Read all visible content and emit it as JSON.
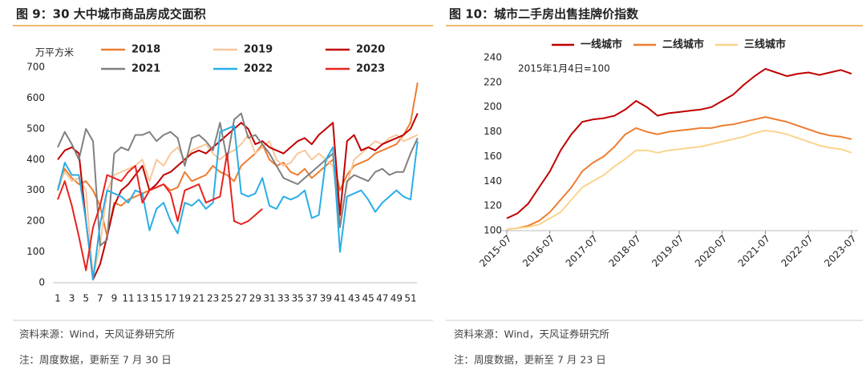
{
  "chart_data": [
    {
      "type": "line",
      "title": "图 9：30 大中城市商品房成交面积",
      "y_label": "万平方米",
      "source": "资料来源：Wind，天风证券研究所",
      "note": "注：周度数据，更新至 7 月 30 日",
      "categories": [
        "1",
        null,
        "3",
        null,
        "5",
        null,
        "7",
        null,
        "9",
        null,
        "11",
        null,
        "13",
        null,
        "15",
        null,
        "17",
        null,
        "19",
        null,
        "21",
        null,
        "23",
        null,
        "25",
        null,
        "27",
        null,
        "29",
        null,
        "31",
        null,
        "33",
        null,
        "35",
        null,
        "37",
        null,
        "39",
        null,
        "41",
        null,
        "43",
        null,
        "45",
        null,
        "47",
        null,
        "49",
        null,
        "51",
        null
      ],
      "ylim": [
        0,
        700
      ],
      "yticks": [
        0,
        100,
        200,
        300,
        400,
        500,
        600,
        700
      ],
      "grid": false,
      "legend": "top",
      "series": [
        {
          "name": "2018",
          "color": "#ed7d31",
          "values": [
            300,
            370,
            340,
            320,
            330,
            300,
            250,
            150,
            260,
            250,
            270,
            280,
            290,
            300,
            310,
            320,
            300,
            310,
            360,
            330,
            340,
            350,
            380,
            360,
            350,
            330,
            380,
            400,
            420,
            450,
            400,
            380,
            390,
            360,
            350,
            370,
            340,
            360,
            380,
            400,
            300,
            350,
            380,
            390,
            400,
            420,
            430,
            440,
            450,
            480,
            520,
            650
          ]
        },
        {
          "name": "2019",
          "color": "#f8c79b",
          "values": [
            310,
            360,
            330,
            340,
            300,
            20,
            120,
            300,
            350,
            360,
            370,
            380,
            400,
            330,
            400,
            380,
            420,
            440,
            400,
            430,
            440,
            450,
            420,
            400,
            420,
            430,
            450,
            480,
            420,
            440,
            460,
            400,
            380,
            390,
            420,
            430,
            400,
            420,
            400,
            380,
            200,
            320,
            400,
            420,
            440,
            460,
            450,
            470,
            480,
            460,
            470,
            480
          ]
        },
        {
          "name": "2020",
          "color": "#c00000",
          "values": [
            400,
            430,
            440,
            420,
            200,
            10,
            60,
            150,
            250,
            300,
            320,
            350,
            380,
            300,
            320,
            350,
            360,
            380,
            400,
            420,
            430,
            420,
            440,
            460,
            480,
            500,
            520,
            500,
            450,
            460,
            440,
            430,
            420,
            440,
            460,
            470,
            450,
            480,
            500,
            520,
            220,
            460,
            480,
            430,
            440,
            430,
            450,
            460,
            470,
            480,
            500,
            550
          ]
        },
        {
          "name": "2021",
          "color": "#808080",
          "values": [
            440,
            490,
            450,
            400,
            500,
            460,
            120,
            140,
            420,
            440,
            430,
            480,
            480,
            490,
            460,
            480,
            490,
            470,
            380,
            470,
            480,
            460,
            430,
            520,
            400,
            530,
            550,
            470,
            480,
            450,
            420,
            380,
            340,
            330,
            320,
            340,
            360,
            380,
            400,
            420,
            180,
            330,
            350,
            340,
            330,
            360,
            370,
            350,
            360,
            360,
            420,
            470
          ]
        },
        {
          "name": "2022",
          "color": "#29aee6",
          "values": [
            300,
            390,
            350,
            350,
            200,
            10,
            190,
            300,
            290,
            280,
            260,
            300,
            290,
            170,
            240,
            260,
            200,
            160,
            260,
            250,
            270,
            240,
            260,
            490,
            500,
            510,
            290,
            280,
            290,
            340,
            250,
            240,
            280,
            270,
            280,
            300,
            210,
            220,
            400,
            440,
            100,
            280,
            290,
            300,
            270,
            230,
            260,
            280,
            300,
            280,
            270,
            460
          ]
        },
        {
          "name": "2023",
          "color": "#e8221f",
          "values": [
            270,
            330,
            250,
            150,
            40,
            180,
            250,
            350,
            340,
            330,
            360,
            380,
            260,
            300,
            310,
            320,
            290,
            200,
            300,
            310,
            320,
            260,
            270,
            280,
            420,
            200,
            190,
            200,
            220,
            240,
            null,
            null,
            null,
            null,
            null,
            null,
            null,
            null,
            null,
            null,
            null,
            null,
            null,
            null,
            null,
            null,
            null,
            null,
            null,
            null,
            null,
            null
          ]
        }
      ]
    },
    {
      "type": "line",
      "title": "图 10：城市二手房出售挂牌价指数",
      "annotation": "2015年1月4日=100",
      "source": "资料来源：Wind，天风证券研究所",
      "note": "注：周度数据，更新至 7 月 23 日",
      "x": [
        "2015-07",
        "2015-10",
        "2016-01",
        "2016-04",
        "2016-07",
        "2016-10",
        "2017-01",
        "2017-04",
        "2017-07",
        "2017-10",
        "2018-01",
        "2018-04",
        "2018-07",
        "2018-10",
        "2019-01",
        "2019-04",
        "2019-07",
        "2019-10",
        "2020-01",
        "2020-04",
        "2020-07",
        "2020-10",
        "2021-01",
        "2021-04",
        "2021-07",
        "2021-10",
        "2022-01",
        "2022-04",
        "2022-07",
        "2022-10",
        "2023-01",
        "2023-04",
        "2023-07"
      ],
      "xticks": [
        "2015-07",
        "2016-07",
        "2017-07",
        "2018-07",
        "2019-07",
        "2020-07",
        "2021-07",
        "2022-07",
        "2023-07"
      ],
      "ylim": [
        100,
        240
      ],
      "yticks": [
        100,
        120,
        140,
        160,
        180,
        200,
        220,
        240
      ],
      "grid": false,
      "legend": "top",
      "series": [
        {
          "name": "一线城市",
          "color": "#c00000",
          "values": [
            110,
            114,
            122,
            135,
            148,
            165,
            178,
            188,
            190,
            191,
            193,
            198,
            205,
            200,
            193,
            195,
            196,
            197,
            198,
            200,
            205,
            210,
            218,
            225,
            231,
            228,
            225,
            227,
            228,
            226,
            228,
            230,
            227
          ]
        },
        {
          "name": "二线城市",
          "color": "#ed7d31",
          "values": [
            101,
            102,
            104,
            108,
            115,
            125,
            135,
            148,
            155,
            160,
            168,
            178,
            183,
            180,
            178,
            180,
            181,
            182,
            183,
            183,
            185,
            186,
            188,
            190,
            192,
            190,
            188,
            185,
            182,
            179,
            177,
            176,
            174
          ]
        },
        {
          "name": "三线城市",
          "color": "#fad48c",
          "values": [
            101,
            102,
            103,
            105,
            110,
            115,
            125,
            135,
            140,
            145,
            152,
            158,
            165,
            165,
            163,
            165,
            166,
            167,
            168,
            170,
            172,
            174,
            176,
            179,
            181,
            180,
            178,
            175,
            172,
            169,
            167,
            166,
            163
          ]
        }
      ]
    }
  ]
}
